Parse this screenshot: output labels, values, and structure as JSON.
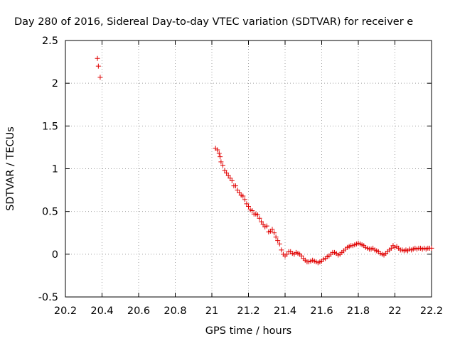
{
  "chart_data": {
    "type": "scatter",
    "title": "Day 280 of 2016, Sidereal Day-to-day VTEC variation (SDTVAR) for receiver e",
    "xlabel": "GPS time / hours",
    "ylabel": "SDTVAR / TECUs",
    "xlim": [
      20.2,
      22.2
    ],
    "ylim": [
      -0.5,
      2.5
    ],
    "grid": true,
    "marker": "+",
    "color": "#e00000",
    "x_ticks": [
      20.2,
      20.4,
      20.6,
      20.8,
      21.0,
      21.2,
      21.4,
      21.6,
      21.8,
      22.0,
      22.2
    ],
    "x_tick_labels": [
      "20.2",
      "20.4",
      "20.6",
      "20.8",
      "21",
      "21.2",
      "21.4",
      "21.6",
      "21.8",
      "22",
      "22.2"
    ],
    "y_ticks": [
      -0.5,
      0,
      0.5,
      1,
      1.5,
      2,
      2.5
    ],
    "y_tick_labels": [
      "-0.5",
      "0",
      "0.5",
      "1",
      "1.5",
      "2",
      "2.5"
    ],
    "series": [
      {
        "name": "SDTVAR",
        "points": [
          [
            20.375,
            2.29
          ],
          [
            20.38,
            2.2
          ],
          [
            20.39,
            2.07
          ],
          [
            21.02,
            1.24
          ],
          [
            21.03,
            1.22
          ],
          [
            21.04,
            1.18
          ],
          [
            21.045,
            1.14
          ],
          [
            21.05,
            1.08
          ],
          [
            21.06,
            1.04
          ],
          [
            21.07,
            0.98
          ],
          [
            21.08,
            0.95
          ],
          [
            21.09,
            0.92
          ],
          [
            21.1,
            0.89
          ],
          [
            21.11,
            0.86
          ],
          [
            21.12,
            0.8
          ],
          [
            21.13,
            0.8
          ],
          [
            21.14,
            0.75
          ],
          [
            21.15,
            0.72
          ],
          [
            21.16,
            0.69
          ],
          [
            21.17,
            0.68
          ],
          [
            21.18,
            0.64
          ],
          [
            21.19,
            0.59
          ],
          [
            21.2,
            0.56
          ],
          [
            21.21,
            0.52
          ],
          [
            21.22,
            0.51
          ],
          [
            21.23,
            0.47
          ],
          [
            21.24,
            0.47
          ],
          [
            21.25,
            0.46
          ],
          [
            21.26,
            0.42
          ],
          [
            21.27,
            0.38
          ],
          [
            21.28,
            0.35
          ],
          [
            21.29,
            0.32
          ],
          [
            21.3,
            0.33
          ],
          [
            21.31,
            0.26
          ],
          [
            21.32,
            0.27
          ],
          [
            21.33,
            0.29
          ],
          [
            21.34,
            0.25
          ],
          [
            21.35,
            0.2
          ],
          [
            21.36,
            0.16
          ],
          [
            21.37,
            0.12
          ],
          [
            21.38,
            0.05
          ],
          [
            21.39,
            0.0
          ],
          [
            21.4,
            -0.02
          ],
          [
            21.41,
            0.0
          ],
          [
            21.42,
            0.03
          ],
          [
            21.43,
            0.03
          ],
          [
            21.44,
            0.01
          ],
          [
            21.45,
            0.0
          ],
          [
            21.46,
            0.02
          ],
          [
            21.47,
            0.01
          ],
          [
            21.48,
            0.0
          ],
          [
            21.49,
            -0.02
          ],
          [
            21.5,
            -0.05
          ],
          [
            21.51,
            -0.07
          ],
          [
            21.52,
            -0.09
          ],
          [
            21.53,
            -0.09
          ],
          [
            21.54,
            -0.08
          ],
          [
            21.55,
            -0.07
          ],
          [
            21.56,
            -0.08
          ],
          [
            21.57,
            -0.09
          ],
          [
            21.58,
            -0.1
          ],
          [
            21.59,
            -0.09
          ],
          [
            21.6,
            -0.08
          ],
          [
            21.61,
            -0.06
          ],
          [
            21.62,
            -0.05
          ],
          [
            21.63,
            -0.03
          ],
          [
            21.64,
            -0.02
          ],
          [
            21.65,
            0.0
          ],
          [
            21.66,
            0.02
          ],
          [
            21.67,
            0.02
          ],
          [
            21.68,
            0.01
          ],
          [
            21.69,
            -0.01
          ],
          [
            21.7,
            0.0
          ],
          [
            21.71,
            0.02
          ],
          [
            21.72,
            0.04
          ],
          [
            21.73,
            0.06
          ],
          [
            21.74,
            0.08
          ],
          [
            21.75,
            0.09
          ],
          [
            21.76,
            0.1
          ],
          [
            21.77,
            0.1
          ],
          [
            21.78,
            0.11
          ],
          [
            21.79,
            0.12
          ],
          [
            21.8,
            0.13
          ],
          [
            21.81,
            0.12
          ],
          [
            21.82,
            0.11
          ],
          [
            21.83,
            0.1
          ],
          [
            21.84,
            0.08
          ],
          [
            21.85,
            0.07
          ],
          [
            21.86,
            0.06
          ],
          [
            21.87,
            0.06
          ],
          [
            21.88,
            0.07
          ],
          [
            21.89,
            0.05
          ],
          [
            21.9,
            0.04
          ],
          [
            21.91,
            0.03
          ],
          [
            21.92,
            0.01
          ],
          [
            21.93,
            0.0
          ],
          [
            21.94,
            -0.01
          ],
          [
            21.95,
            0.01
          ],
          [
            21.96,
            0.03
          ],
          [
            21.97,
            0.05
          ],
          [
            21.98,
            0.07
          ],
          [
            21.99,
            0.1
          ],
          [
            22.0,
            0.08
          ],
          [
            22.01,
            0.09
          ],
          [
            22.02,
            0.07
          ],
          [
            22.03,
            0.05
          ],
          [
            22.04,
            0.05
          ],
          [
            22.05,
            0.04
          ],
          [
            22.06,
            0.05
          ],
          [
            22.07,
            0.04
          ],
          [
            22.08,
            0.06
          ],
          [
            22.09,
            0.05
          ],
          [
            22.1,
            0.06
          ],
          [
            22.11,
            0.07
          ],
          [
            22.12,
            0.06
          ],
          [
            22.13,
            0.07
          ],
          [
            22.14,
            0.07
          ],
          [
            22.15,
            0.06
          ],
          [
            22.16,
            0.07
          ],
          [
            22.17,
            0.06
          ],
          [
            22.18,
            0.07
          ],
          [
            22.19,
            0.07
          ],
          [
            22.2,
            0.07
          ]
        ]
      }
    ]
  }
}
